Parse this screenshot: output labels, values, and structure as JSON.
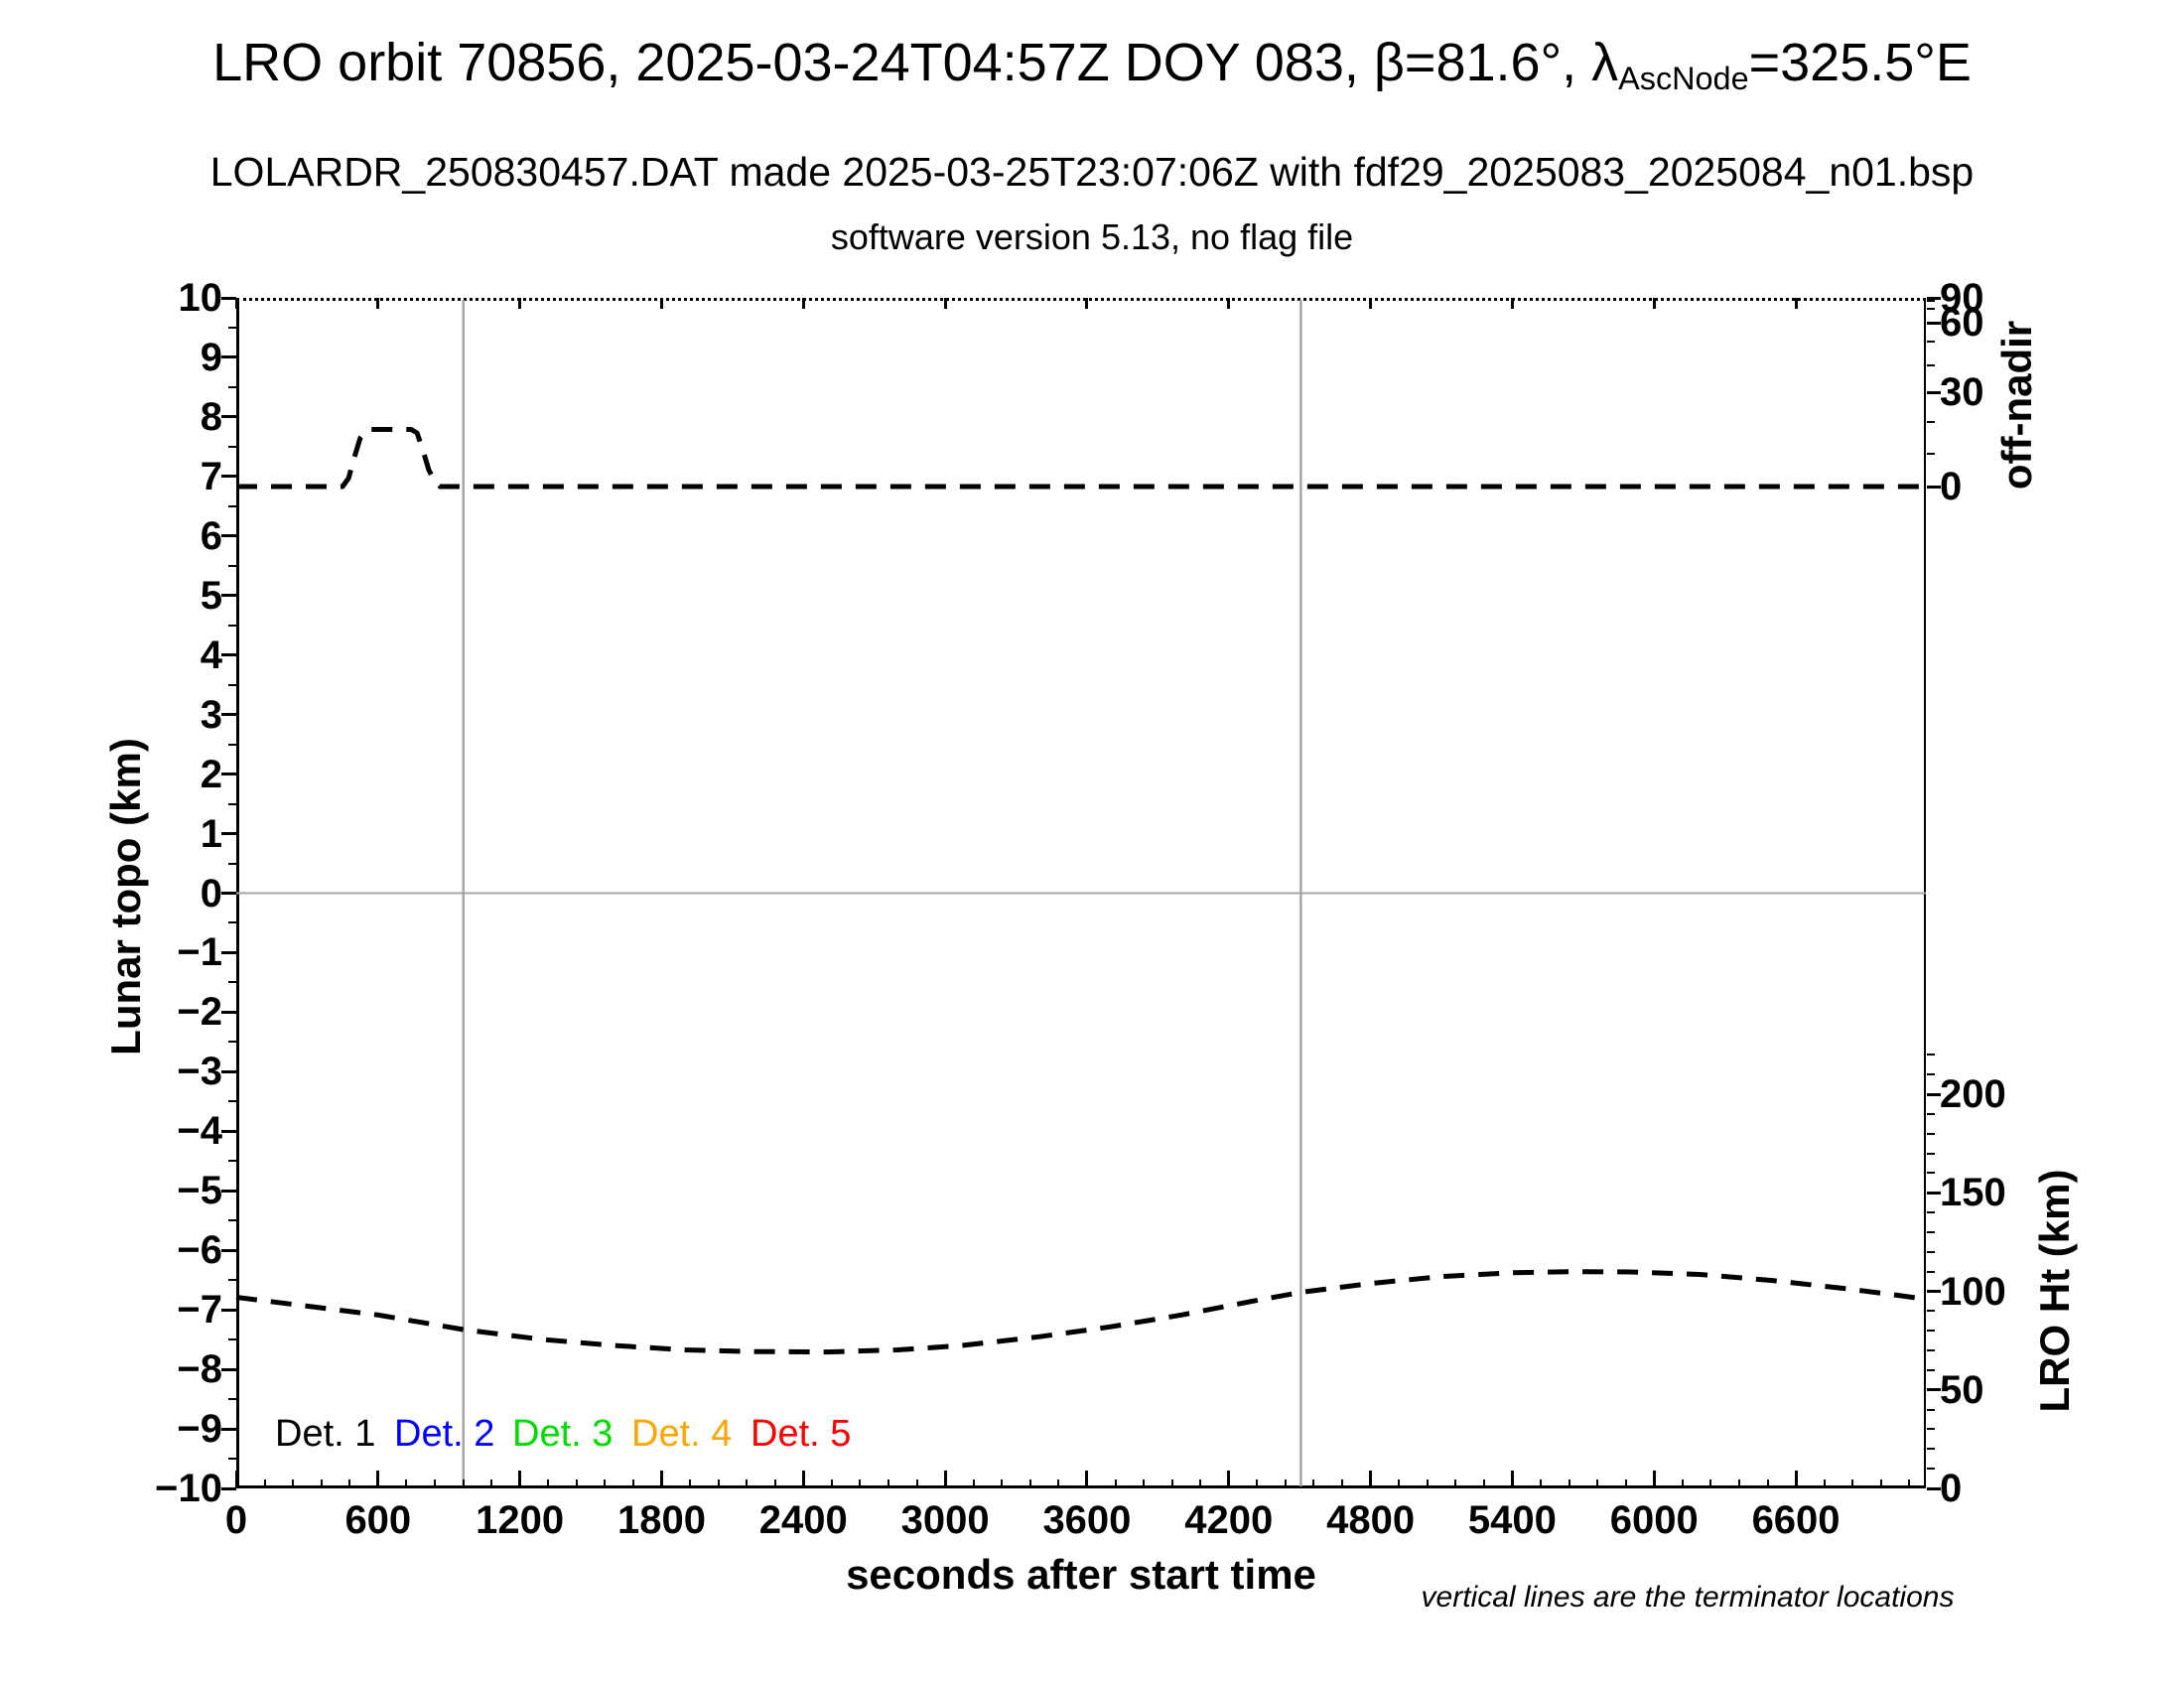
{
  "header": {
    "title_pre": "LRO orbit 70856, 2025-03-24T04:57Z DOY 083, β=81.6°, λ",
    "title_sub": "AscNode",
    "title_post": "=325.5°E",
    "subtitle": "LOLARDR_250830457.DAT made 2025-03-25T23:07:06Z with fdf29_2025083_2025084_n01.bsp",
    "version_line": "software version 5.13, no flag file"
  },
  "axes": {
    "x": {
      "label": "seconds after start time",
      "min": 0,
      "max": 7150,
      "major_step": 600,
      "minor_step": 120,
      "tick_labels": [
        "0",
        "600",
        "1200",
        "1800",
        "2400",
        "3000",
        "3600",
        "4200",
        "4800",
        "5400",
        "6000",
        "6600"
      ]
    },
    "y_left": {
      "label": "Lunar topo (km)",
      "min": -10,
      "max": 10,
      "major_step": 1,
      "minor_step": 0.5,
      "tick_labels": [
        "10",
        "9",
        "8",
        "7",
        "6",
        "5",
        "4",
        "3",
        "2",
        "1",
        "0",
        "−1",
        "−2",
        "−3",
        "−4",
        "−5",
        "−6",
        "−7",
        "−8",
        "−9",
        "−10"
      ]
    },
    "y_right_offnadir": {
      "label": "off-nadir",
      "major_ticks": [
        90,
        60,
        30,
        0
      ],
      "tick_labels": [
        "90",
        "60",
        "30",
        "0"
      ],
      "minor_ticks": [
        80,
        70,
        50,
        40,
        20,
        10
      ],
      "mapping": "sine"
    },
    "y_right_height": {
      "label": "LRO Ht (km)",
      "major_ticks": [
        200,
        150,
        100,
        50,
        0
      ],
      "tick_labels": [
        "200",
        "150",
        "100",
        "50",
        "0"
      ],
      "minor_step": 10,
      "minor_max": 220
    }
  },
  "legend": {
    "items": [
      {
        "label": "Det. 1",
        "color": "#000000"
      },
      {
        "label": "Det. 2",
        "color": "#0000ff"
      },
      {
        "label": "Det. 3",
        "color": "#00dd00"
      },
      {
        "label": "Det. 4",
        "color": "#ffa500"
      },
      {
        "label": "Det. 5",
        "color": "#ff0000"
      }
    ]
  },
  "footnote": "vertical lines are the terminator locations",
  "chart_data": {
    "type": "line",
    "xlabel": "seconds after start time",
    "x_range": [
      0,
      7150
    ],
    "ylim_left_topo_km": [
      -10,
      10
    ],
    "grid": "horizontal zero-line plus two vertical terminator lines, gray",
    "legend_position": "inside bottom-left",
    "terminator_lines_s": [
      961,
      4505
    ],
    "colors": {
      "curves": "#000000",
      "gridlines": "#a6a6a6"
    },
    "series": [
      {
        "name": "off-nadir angle",
        "axis": "right-top",
        "units": "deg",
        "line_style": "dashed",
        "color": "#000000",
        "points": [
          [
            0,
            0
          ],
          [
            450,
            0
          ],
          [
            475,
            2.5
          ],
          [
            500,
            9
          ],
          [
            525,
            15
          ],
          [
            548,
            17.3
          ],
          [
            565,
            17.6
          ],
          [
            740,
            17.6
          ],
          [
            765,
            16.5
          ],
          [
            790,
            11
          ],
          [
            815,
            5
          ],
          [
            840,
            1.5
          ],
          [
            862,
            0
          ],
          [
            7150,
            0
          ]
        ]
      },
      {
        "name": "LRO height",
        "axis": "right-bottom",
        "units": "km",
        "line_style": "dashed",
        "color": "#000000",
        "points": [
          [
            0,
            97
          ],
          [
            300,
            92.5
          ],
          [
            600,
            88
          ],
          [
            966,
            80.5
          ],
          [
            1300,
            75.5
          ],
          [
            1600,
            72.5
          ],
          [
            1900,
            70.3
          ],
          [
            2200,
            69.4
          ],
          [
            2500,
            69.2
          ],
          [
            2800,
            70.3
          ],
          [
            3070,
            72.5
          ],
          [
            3400,
            77
          ],
          [
            3700,
            82
          ],
          [
            4000,
            88
          ],
          [
            4300,
            95
          ],
          [
            4505,
            99.5
          ],
          [
            4800,
            104
          ],
          [
            5100,
            107.5
          ],
          [
            5400,
            109.4
          ],
          [
            5660,
            110
          ],
          [
            5900,
            109.8
          ],
          [
            6200,
            108.5
          ],
          [
            6500,
            105.5
          ],
          [
            6800,
            101.5
          ],
          [
            7000,
            98.5
          ],
          [
            7150,
            96
          ]
        ]
      }
    ]
  }
}
